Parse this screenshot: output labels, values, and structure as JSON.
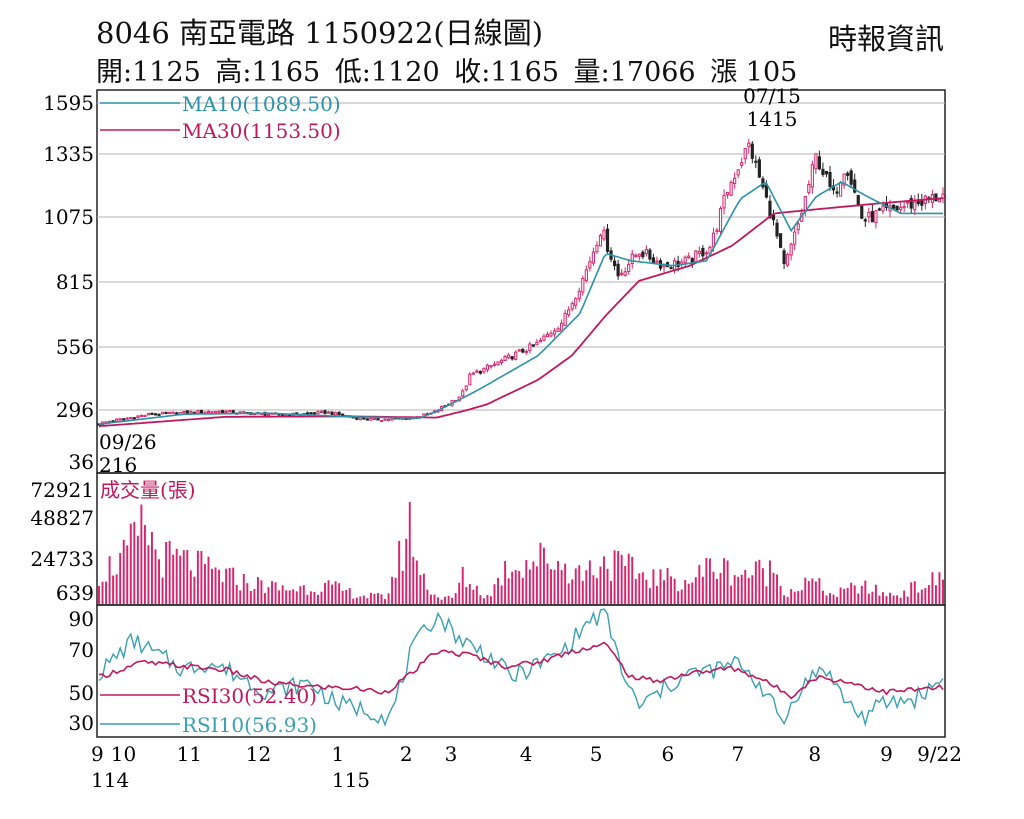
{
  "header": {
    "title": "8046  南亞電路 1150922(日線圖)",
    "source": "時報資訊",
    "ohlc": [
      {
        "label": "開:1125"
      },
      {
        "label": "高:1165"
      },
      {
        "label": "低:1120"
      },
      {
        "label": "收:1165"
      },
      {
        "label": "量:17066"
      },
      {
        "label": "漲 105"
      }
    ]
  },
  "colors": {
    "up": "#d8246c",
    "down": "#222222",
    "ma10": "#2a93a8",
    "ma30": "#c0185e",
    "rsi30": "#c0185e",
    "rsi10": "#39a0b4",
    "volume": "#d8246c",
    "grid": "#b3b3b3"
  },
  "chart_data": [
    {
      "type": "candlestick",
      "yticks": [
        "1595",
        "1335",
        "1075",
        "815",
        "556",
        "296",
        "36"
      ],
      "ylim": [
        36,
        1595
      ],
      "legend": [
        {
          "label": "MA10(1089.50)",
          "color": "#2a93a8"
        },
        {
          "label": "MA30(1153.50)",
          "color": "#c0185e"
        }
      ],
      "annotations": [
        {
          "date": "07/15",
          "value": "1415"
        },
        {
          "date": "09/26",
          "value": "216"
        }
      ],
      "anchors": [
        {
          "t": 0.0,
          "c": 230
        },
        {
          "t": 0.06,
          "c": 275
        },
        {
          "t": 0.14,
          "c": 290
        },
        {
          "t": 0.22,
          "c": 270
        },
        {
          "t": 0.27,
          "c": 285
        },
        {
          "t": 0.3,
          "c": 258
        },
        {
          "t": 0.325,
          "c": 248
        },
        {
          "t": 0.37,
          "c": 255
        },
        {
          "t": 0.395,
          "c": 280
        },
        {
          "t": 0.43,
          "c": 360
        },
        {
          "t": 0.44,
          "c": 440
        },
        {
          "t": 0.46,
          "c": 470
        },
        {
          "t": 0.49,
          "c": 520
        },
        {
          "t": 0.52,
          "c": 570
        },
        {
          "t": 0.55,
          "c": 660
        },
        {
          "t": 0.575,
          "c": 840
        },
        {
          "t": 0.595,
          "c": 1030
        },
        {
          "t": 0.615,
          "c": 840
        },
        {
          "t": 0.64,
          "c": 940
        },
        {
          "t": 0.67,
          "c": 880
        },
        {
          "t": 0.7,
          "c": 900
        },
        {
          "t": 0.725,
          "c": 960
        },
        {
          "t": 0.745,
          "c": 1190
        },
        {
          "t": 0.77,
          "c": 1380
        },
        {
          "t": 0.8,
          "c": 1040
        },
        {
          "t": 0.812,
          "c": 870
        },
        {
          "t": 0.83,
          "c": 1060
        },
        {
          "t": 0.85,
          "c": 1330
        },
        {
          "t": 0.87,
          "c": 1160
        },
        {
          "t": 0.885,
          "c": 1300
        },
        {
          "t": 0.905,
          "c": 1060
        },
        {
          "t": 0.925,
          "c": 1090
        },
        {
          "t": 1.0,
          "c": 1165
        }
      ],
      "ma10_anchors": [
        {
          "t": 0.0,
          "c": 225
        },
        {
          "t": 0.1,
          "c": 275
        },
        {
          "t": 0.2,
          "c": 280
        },
        {
          "t": 0.3,
          "c": 262
        },
        {
          "t": 0.38,
          "c": 255
        },
        {
          "t": 0.45,
          "c": 380
        },
        {
          "t": 0.52,
          "c": 520
        },
        {
          "t": 0.57,
          "c": 690
        },
        {
          "t": 0.6,
          "c": 930
        },
        {
          "t": 0.63,
          "c": 900
        },
        {
          "t": 0.68,
          "c": 880
        },
        {
          "t": 0.72,
          "c": 900
        },
        {
          "t": 0.76,
          "c": 1150
        },
        {
          "t": 0.79,
          "c": 1220
        },
        {
          "t": 0.82,
          "c": 1020
        },
        {
          "t": 0.85,
          "c": 1160
        },
        {
          "t": 0.88,
          "c": 1220
        },
        {
          "t": 0.91,
          "c": 1160
        },
        {
          "t": 0.95,
          "c": 1090
        },
        {
          "t": 1.0,
          "c": 1090
        }
      ],
      "ma30_anchors": [
        {
          "t": 0.0,
          "c": 215
        },
        {
          "t": 0.15,
          "c": 262
        },
        {
          "t": 0.3,
          "c": 264
        },
        {
          "t": 0.4,
          "c": 258
        },
        {
          "t": 0.46,
          "c": 320
        },
        {
          "t": 0.52,
          "c": 420
        },
        {
          "t": 0.56,
          "c": 520
        },
        {
          "t": 0.6,
          "c": 680
        },
        {
          "t": 0.64,
          "c": 820
        },
        {
          "t": 0.7,
          "c": 880
        },
        {
          "t": 0.75,
          "c": 960
        },
        {
          "t": 0.8,
          "c": 1090
        },
        {
          "t": 0.86,
          "c": 1110
        },
        {
          "t": 0.92,
          "c": 1130
        },
        {
          "t": 1.0,
          "c": 1153
        }
      ]
    },
    {
      "type": "bar",
      "title": "成交量(張)",
      "yticks": [
        "72921",
        "48827",
        "24733",
        "639"
      ],
      "ylim": [
        639,
        72921
      ],
      "anchors": [
        {
          "t": 0.0,
          "v": 20000
        },
        {
          "t": 0.03,
          "v": 30000
        },
        {
          "t": 0.055,
          "v": 50000
        },
        {
          "t": 0.07,
          "v": 30000
        },
        {
          "t": 0.1,
          "v": 28000
        },
        {
          "t": 0.13,
          "v": 22000
        },
        {
          "t": 0.17,
          "v": 15000
        },
        {
          "t": 0.22,
          "v": 10000
        },
        {
          "t": 0.27,
          "v": 12000
        },
        {
          "t": 0.31,
          "v": 6000
        },
        {
          "t": 0.34,
          "v": 5000
        },
        {
          "t": 0.355,
          "v": 28000
        },
        {
          "t": 0.37,
          "v": 52000
        },
        {
          "t": 0.38,
          "v": 20000
        },
        {
          "t": 0.4,
          "v": 5000
        },
        {
          "t": 0.42,
          "v": 4000
        },
        {
          "t": 0.43,
          "v": 18000
        },
        {
          "t": 0.46,
          "v": 5000
        },
        {
          "t": 0.485,
          "v": 25000
        },
        {
          "t": 0.53,
          "v": 30000
        },
        {
          "t": 0.57,
          "v": 20000
        },
        {
          "t": 0.6,
          "v": 28000
        },
        {
          "t": 0.65,
          "v": 18000
        },
        {
          "t": 0.7,
          "v": 15000
        },
        {
          "t": 0.725,
          "v": 25000
        },
        {
          "t": 0.76,
          "v": 20000
        },
        {
          "t": 0.8,
          "v": 22000
        },
        {
          "t": 0.815,
          "v": 8000
        },
        {
          "t": 0.845,
          "v": 15000
        },
        {
          "t": 0.87,
          "v": 6000
        },
        {
          "t": 0.9,
          "v": 12000
        },
        {
          "t": 0.94,
          "v": 6000
        },
        {
          "t": 1.0,
          "v": 17066
        }
      ]
    },
    {
      "type": "line",
      "yticks": [
        "90",
        "70",
        "50",
        "30"
      ],
      "ylim": [
        20,
        95
      ],
      "series": [
        {
          "name": "RSI30(52.40)",
          "color": "#c0185e",
          "anchors": [
            {
              "t": 0.0,
              "v": 58
            },
            {
              "t": 0.05,
              "v": 66
            },
            {
              "t": 0.1,
              "v": 64
            },
            {
              "t": 0.15,
              "v": 62
            },
            {
              "t": 0.2,
              "v": 55
            },
            {
              "t": 0.25,
              "v": 53
            },
            {
              "t": 0.3,
              "v": 52
            },
            {
              "t": 0.34,
              "v": 50
            },
            {
              "t": 0.37,
              "v": 60
            },
            {
              "t": 0.4,
              "v": 72
            },
            {
              "t": 0.44,
              "v": 70
            },
            {
              "t": 0.48,
              "v": 64
            },
            {
              "t": 0.52,
              "v": 66
            },
            {
              "t": 0.56,
              "v": 72
            },
            {
              "t": 0.6,
              "v": 76
            },
            {
              "t": 0.63,
              "v": 58
            },
            {
              "t": 0.66,
              "v": 56
            },
            {
              "t": 0.7,
              "v": 60
            },
            {
              "t": 0.75,
              "v": 63
            },
            {
              "t": 0.78,
              "v": 58
            },
            {
              "t": 0.82,
              "v": 48
            },
            {
              "t": 0.85,
              "v": 58
            },
            {
              "t": 0.88,
              "v": 56
            },
            {
              "t": 0.9,
              "v": 54
            },
            {
              "t": 0.93,
              "v": 50
            },
            {
              "t": 0.96,
              "v": 51
            },
            {
              "t": 1.0,
              "v": 52.4
            }
          ]
        },
        {
          "name": "RSI10(56.93)",
          "color": "#39a0b4",
          "anchors": [
            {
              "t": 0.0,
              "v": 60
            },
            {
              "t": 0.04,
              "v": 78
            },
            {
              "t": 0.07,
              "v": 70
            },
            {
              "t": 0.1,
              "v": 62
            },
            {
              "t": 0.13,
              "v": 66
            },
            {
              "t": 0.16,
              "v": 60
            },
            {
              "t": 0.2,
              "v": 50
            },
            {
              "t": 0.25,
              "v": 55
            },
            {
              "t": 0.28,
              "v": 44
            },
            {
              "t": 0.32,
              "v": 40
            },
            {
              "t": 0.345,
              "v": 36
            },
            {
              "t": 0.37,
              "v": 72
            },
            {
              "t": 0.4,
              "v": 92
            },
            {
              "t": 0.43,
              "v": 78
            },
            {
              "t": 0.46,
              "v": 70
            },
            {
              "t": 0.49,
              "v": 58
            },
            {
              "t": 0.52,
              "v": 65
            },
            {
              "t": 0.55,
              "v": 72
            },
            {
              "t": 0.58,
              "v": 88
            },
            {
              "t": 0.6,
              "v": 92
            },
            {
              "t": 0.625,
              "v": 54
            },
            {
              "t": 0.64,
              "v": 42
            },
            {
              "t": 0.67,
              "v": 52
            },
            {
              "t": 0.7,
              "v": 60
            },
            {
              "t": 0.73,
              "v": 62
            },
            {
              "t": 0.76,
              "v": 66
            },
            {
              "t": 0.79,
              "v": 50
            },
            {
              "t": 0.81,
              "v": 33
            },
            {
              "t": 0.83,
              "v": 52
            },
            {
              "t": 0.86,
              "v": 64
            },
            {
              "t": 0.88,
              "v": 48
            },
            {
              "t": 0.905,
              "v": 36
            },
            {
              "t": 0.93,
              "v": 44
            },
            {
              "t": 0.965,
              "v": 46
            },
            {
              "t": 1.0,
              "v": 56.93
            }
          ]
        }
      ]
    }
  ],
  "xaxis": {
    "months": [
      {
        "label": "9",
        "t": 0.0
      },
      {
        "label": "10",
        "t": 0.029
      },
      {
        "label": "11",
        "t": 0.107
      },
      {
        "label": "12",
        "t": 0.189
      },
      {
        "label": "1",
        "t": 0.283
      },
      {
        "label": "2",
        "t": 0.364
      },
      {
        "label": "3",
        "t": 0.417
      },
      {
        "label": "4",
        "t": 0.506
      },
      {
        "label": "5",
        "t": 0.589
      },
      {
        "label": "6",
        "t": 0.674
      },
      {
        "label": "7",
        "t": 0.757
      },
      {
        "label": "8",
        "t": 0.848
      },
      {
        "label": "9",
        "t": 0.933
      },
      {
        "label": "9/22",
        "t": 0.996
      }
    ],
    "years": [
      {
        "label": "114",
        "t": 0.0
      },
      {
        "label": "115",
        "t": 0.283
      }
    ]
  }
}
